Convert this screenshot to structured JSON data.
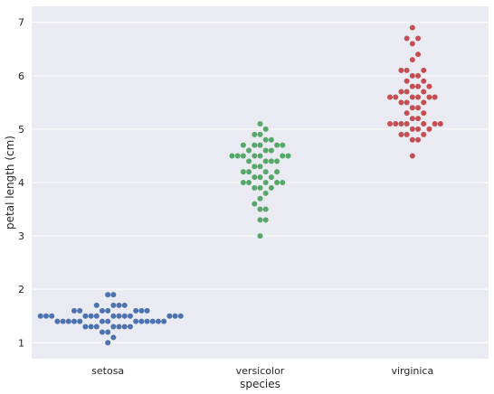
{
  "chart_data": {
    "type": "scatter",
    "subtype": "swarm",
    "title": "",
    "xlabel": "species",
    "ylabel": "petal length (cm)",
    "categories": [
      "setosa",
      "versicolor",
      "virginica"
    ],
    "ylim": [
      0.7,
      7.3
    ],
    "yticks": [
      "1",
      "2",
      "3",
      "4",
      "5",
      "6",
      "7"
    ],
    "grid": true,
    "legend": "none",
    "colors": {
      "background": "#EAEAF2",
      "grid": "#FFFFFF",
      "setosa": "#4C72B0",
      "versicolor": "#55A868",
      "virginica": "#C44E52"
    },
    "series": [
      {
        "category": "setosa",
        "values": [
          1.4,
          1.4,
          1.3,
          1.5,
          1.4,
          1.7,
          1.4,
          1.5,
          1.4,
          1.5,
          1.5,
          1.6,
          1.4,
          1.1,
          1.2,
          1.5,
          1.3,
          1.4,
          1.7,
          1.5,
          1.7,
          1.5,
          1.0,
          1.7,
          1.9,
          1.6,
          1.6,
          1.5,
          1.4,
          1.6,
          1.6,
          1.5,
          1.5,
          1.4,
          1.5,
          1.2,
          1.3,
          1.4,
          1.3,
          1.5,
          1.3,
          1.3,
          1.3,
          1.6,
          1.9,
          1.4,
          1.6,
          1.4,
          1.5,
          1.4
        ]
      },
      {
        "category": "versicolor",
        "values": [
          4.7,
          4.5,
          4.9,
          4.0,
          4.6,
          4.5,
          4.7,
          3.3,
          4.6,
          3.9,
          3.5,
          4.2,
          4.0,
          4.7,
          3.6,
          4.4,
          4.5,
          4.1,
          4.5,
          3.9,
          4.8,
          4.0,
          4.9,
          4.7,
          4.3,
          4.4,
          4.8,
          5.0,
          4.5,
          3.5,
          3.8,
          3.7,
          3.9,
          5.1,
          4.5,
          4.5,
          4.7,
          4.4,
          4.1,
          4.0,
          4.4,
          4.6,
          4.0,
          3.3,
          4.2,
          4.2,
          4.2,
          4.3,
          3.0,
          4.1
        ]
      },
      {
        "category": "virginica",
        "values": [
          6.0,
          5.1,
          5.9,
          5.6,
          5.8,
          6.6,
          4.5,
          6.3,
          5.8,
          6.1,
          5.1,
          5.3,
          5.5,
          5.0,
          5.1,
          5.3,
          5.5,
          6.7,
          6.9,
          5.0,
          5.7,
          4.9,
          6.7,
          4.9,
          5.7,
          6.0,
          4.8,
          4.9,
          5.6,
          5.8,
          6.1,
          6.4,
          5.6,
          5.1,
          5.6,
          6.1,
          5.6,
          5.5,
          4.8,
          5.4,
          5.6,
          5.1,
          5.1,
          5.9,
          5.7,
          5.2,
          5.0,
          5.2,
          5.4,
          5.1
        ]
      }
    ]
  }
}
